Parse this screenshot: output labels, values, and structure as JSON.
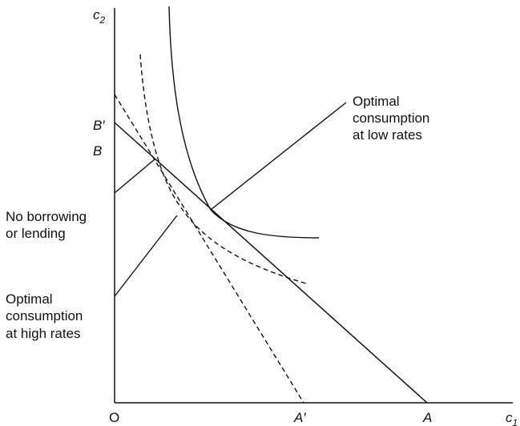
{
  "axes": {
    "y_label": "c",
    "y_label_sub": "2",
    "x_label": "c",
    "x_label_sub": "1",
    "origin_label": "O"
  },
  "points": {
    "b_prime": "B′",
    "b": "B",
    "a_prime": "A′",
    "a": "A"
  },
  "annotations": {
    "optimal_low": [
      "Optimal",
      "consumption",
      "at low rates"
    ],
    "no_borrowing": [
      "No borrowing",
      "or lending"
    ],
    "optimal_high": [
      "Optimal",
      "consumption",
      "at high rates"
    ]
  },
  "colors": {
    "ink": "#111111",
    "background": "#ffffff"
  }
}
